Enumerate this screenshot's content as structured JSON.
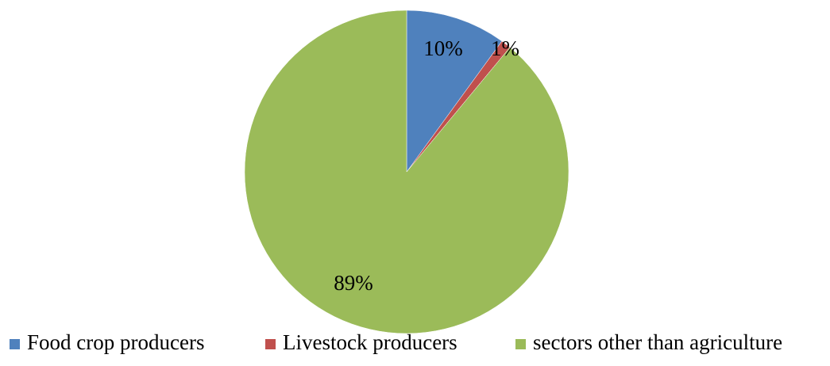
{
  "chart_data": {
    "type": "pie",
    "title": "",
    "slices": [
      {
        "label": "Food crop producers",
        "value": 10,
        "display": "10%",
        "color": "#4f81bd"
      },
      {
        "label": "Livestock producers",
        "value": 1,
        "display": "1%",
        "color": "#c0504d"
      },
      {
        "label": "sectors other than agriculture",
        "value": 89,
        "display": "89%",
        "color": "#9bbb59"
      }
    ],
    "start_angle_deg": 0,
    "direction": "clockwise",
    "legend_position": "bottom"
  }
}
